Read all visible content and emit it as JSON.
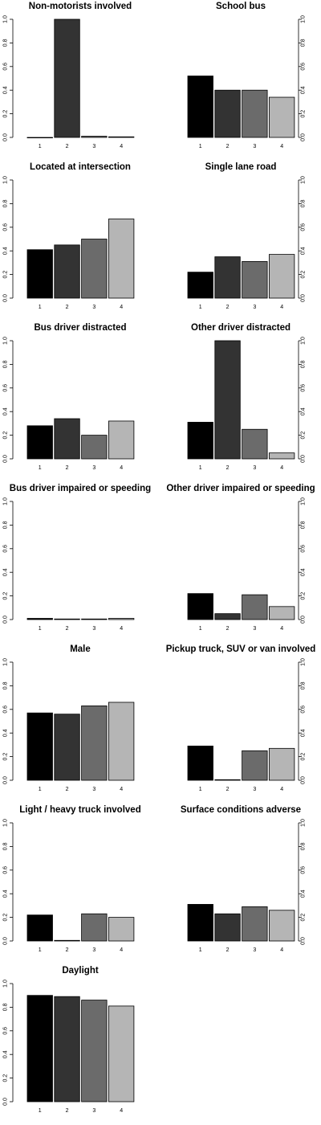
{
  "chart_data": [
    {
      "type": "bar",
      "title": "Non-motorists involved",
      "categories": [
        "1",
        "2",
        "3",
        "4"
      ],
      "values": [
        0.0,
        1.0,
        0.01,
        0.005
      ],
      "ylim": [
        0,
        1.0
      ],
      "yticks": [
        "0.0",
        "0.2",
        "0.4",
        "0.6",
        "0.8",
        "1.0"
      ],
      "yaxis_side": "left"
    },
    {
      "type": "bar",
      "title": "School bus",
      "categories": [
        "1",
        "2",
        "3",
        "4"
      ],
      "values": [
        0.52,
        0.4,
        0.4,
        0.34
      ],
      "ylim": [
        0,
        1.0
      ],
      "yticks": [
        "0.0",
        "0.2",
        "0.4",
        "0.6",
        "0.8",
        "1.0"
      ],
      "yaxis_side": "right"
    },
    {
      "type": "bar",
      "title": "Located at intersection",
      "categories": [
        "1",
        "2",
        "3",
        "4"
      ],
      "values": [
        0.41,
        0.45,
        0.5,
        0.67
      ],
      "ylim": [
        0,
        1.0
      ],
      "yticks": [
        "0.0",
        "0.2",
        "0.4",
        "0.6",
        "0.8",
        "1.0"
      ],
      "yaxis_side": "left"
    },
    {
      "type": "bar",
      "title": "Single lane road",
      "categories": [
        "1",
        "2",
        "3",
        "4"
      ],
      "values": [
        0.22,
        0.35,
        0.31,
        0.37
      ],
      "ylim": [
        0,
        1.0
      ],
      "yticks": [
        "0.0",
        "0.2",
        "0.4",
        "0.6",
        "0.8",
        "1.0"
      ],
      "yaxis_side": "right"
    },
    {
      "type": "bar",
      "title": "Bus driver distracted",
      "categories": [
        "1",
        "2",
        "3",
        "4"
      ],
      "values": [
        0.28,
        0.34,
        0.2,
        0.32
      ],
      "ylim": [
        0,
        1.0
      ],
      "yticks": [
        "0.0",
        "0.2",
        "0.4",
        "0.6",
        "0.8",
        "1.0"
      ],
      "yaxis_side": "left"
    },
    {
      "type": "bar",
      "title": "Other driver distracted",
      "categories": [
        "1",
        "2",
        "3",
        "4"
      ],
      "values": [
        0.31,
        1.0,
        0.25,
        0.05
      ],
      "ylim": [
        0,
        1.0
      ],
      "yticks": [
        "0.0",
        "0.2",
        "0.4",
        "0.6",
        "0.8",
        "1.0"
      ],
      "yaxis_side": "right"
    },
    {
      "type": "bar",
      "title": "Bus driver impaired or speeding",
      "categories": [
        "1",
        "2",
        "3",
        "4"
      ],
      "values": [
        0.01,
        0.005,
        0.005,
        0.01
      ],
      "ylim": [
        0,
        1.0
      ],
      "yticks": [
        "0.0",
        "0.2",
        "0.4",
        "0.6",
        "0.8",
        "1.0"
      ],
      "yaxis_side": "left"
    },
    {
      "type": "bar",
      "title": "Other driver impaired or speeding",
      "categories": [
        "1",
        "2",
        "3",
        "4"
      ],
      "values": [
        0.22,
        0.05,
        0.21,
        0.11
      ],
      "ylim": [
        0,
        1.0
      ],
      "yticks": [
        "0.0",
        "0.2",
        "0.4",
        "0.6",
        "0.8",
        "1.0"
      ],
      "yaxis_side": "right"
    },
    {
      "type": "bar",
      "title": "Male",
      "categories": [
        "1",
        "2",
        "3",
        "4"
      ],
      "values": [
        0.57,
        0.56,
        0.63,
        0.66
      ],
      "ylim": [
        0,
        1.0
      ],
      "yticks": [
        "0.0",
        "0.2",
        "0.4",
        "0.6",
        "0.8",
        "1.0"
      ],
      "yaxis_side": "left"
    },
    {
      "type": "bar",
      "title": "Pickup truck, SUV or van involved",
      "categories": [
        "1",
        "2",
        "3",
        "4"
      ],
      "values": [
        0.29,
        0.005,
        0.25,
        0.27
      ],
      "ylim": [
        0,
        1.0
      ],
      "yticks": [
        "0.0",
        "0.2",
        "0.4",
        "0.6",
        "0.8",
        "1.0"
      ],
      "yaxis_side": "right"
    },
    {
      "type": "bar",
      "title": "Light / heavy truck involved",
      "categories": [
        "1",
        "2",
        "3",
        "4"
      ],
      "values": [
        0.22,
        0.005,
        0.23,
        0.2
      ],
      "ylim": [
        0,
        1.0
      ],
      "yticks": [
        "0.0",
        "0.2",
        "0.4",
        "0.6",
        "0.8",
        "1.0"
      ],
      "yaxis_side": "left"
    },
    {
      "type": "bar",
      "title": "Surface conditions adverse",
      "categories": [
        "1",
        "2",
        "3",
        "4"
      ],
      "values": [
        0.31,
        0.23,
        0.29,
        0.26
      ],
      "ylim": [
        0,
        1.0
      ],
      "yticks": [
        "0.0",
        "0.2",
        "0.4",
        "0.6",
        "0.8",
        "1.0"
      ],
      "yaxis_side": "right"
    },
    {
      "type": "bar",
      "title": "Daylight",
      "categories": [
        "1",
        "2",
        "3",
        "4"
      ],
      "values": [
        0.9,
        0.89,
        0.86,
        0.81
      ],
      "ylim": [
        0,
        1.0
      ],
      "yticks": [
        "0.0",
        "0.2",
        "0.4",
        "0.6",
        "0.8",
        "1.0"
      ],
      "yaxis_side": "left"
    }
  ],
  "bar_colors": [
    "#000000",
    "#333333",
    "#6b6b6b",
    "#b5b5b5"
  ]
}
